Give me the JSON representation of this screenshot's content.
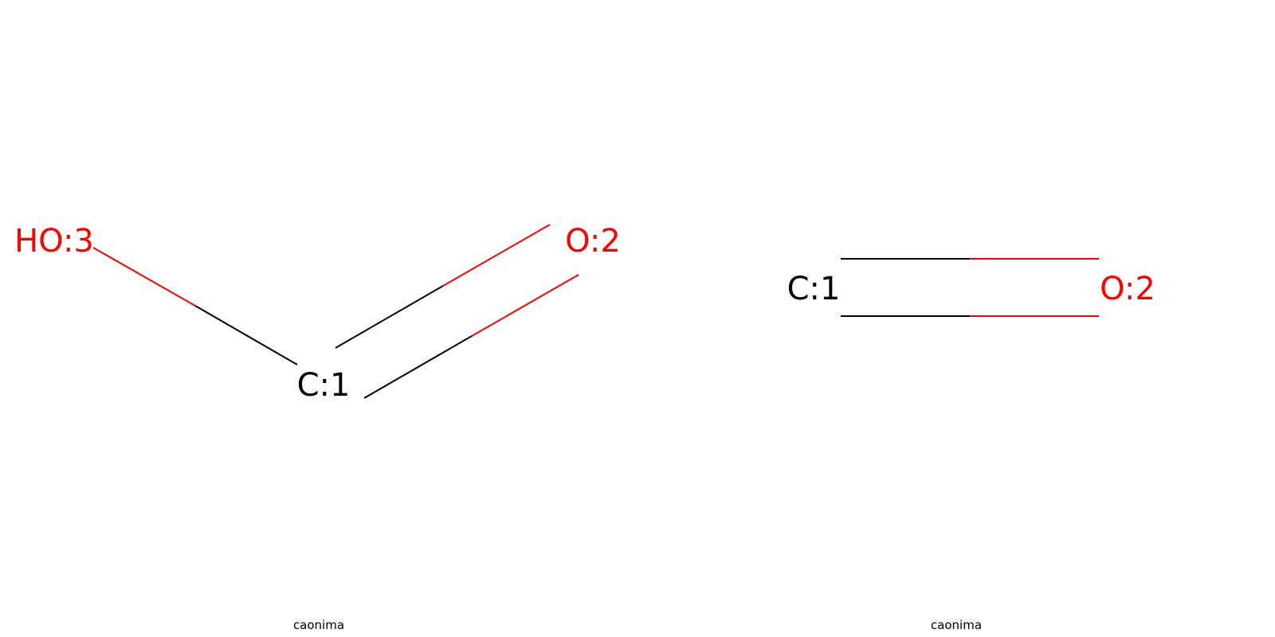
{
  "molecules": [
    {
      "name": "caonima",
      "atoms": [
        {
          "id": "c1",
          "label": "C:1",
          "element": "C",
          "color": "#000000"
        },
        {
          "id": "o2",
          "label": "O:2",
          "element": "O",
          "color": "#ff0000"
        },
        {
          "id": "o3",
          "label": "HO:3",
          "element": "O",
          "color": "#ff0000"
        }
      ],
      "bonds": [
        {
          "from": "C:1",
          "to": "O:2",
          "order": 2
        },
        {
          "from": "C:1",
          "to": "HO:3",
          "order": 1
        }
      ]
    },
    {
      "name": "caonima",
      "atoms": [
        {
          "id": "c1",
          "label": "C:1",
          "element": "C",
          "color": "#000000"
        },
        {
          "id": "o2",
          "label": "O:2",
          "element": "O",
          "color": "#ff0000"
        }
      ],
      "bonds": [
        {
          "from": "C:1",
          "to": "O:2",
          "order": 2
        }
      ]
    }
  ]
}
